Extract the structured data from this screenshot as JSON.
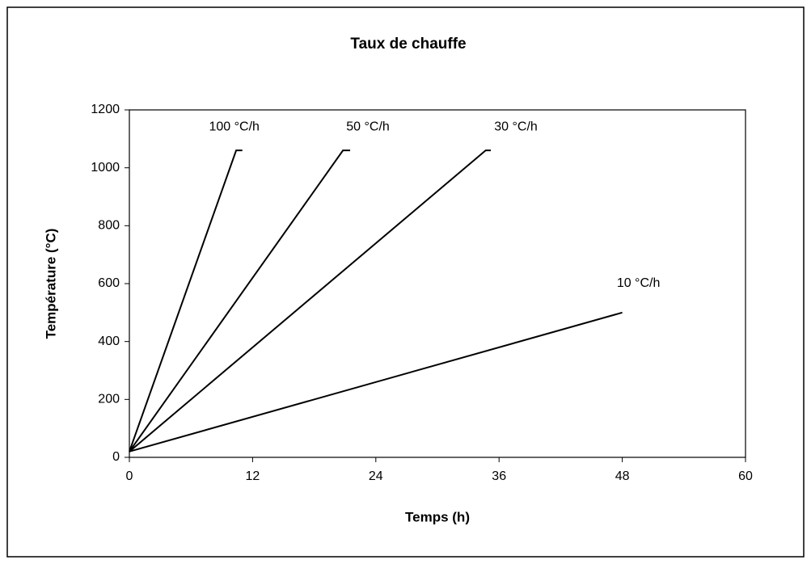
{
  "chart_data": {
    "type": "line",
    "title": "Taux de chauffe",
    "x_label": "Temps (h)",
    "y_label": "Température (°C)",
    "xlim": [
      0,
      60
    ],
    "xticks": [
      0,
      12,
      24,
      36,
      48,
      60
    ],
    "ylim": [
      0,
      1200
    ],
    "yticks": [
      0,
      200,
      400,
      600,
      800,
      1000,
      1200
    ],
    "grid": false,
    "series": [
      {
        "name": "100 °C/h",
        "color": "#000000",
        "x": [
          0,
          10.4,
          11
        ],
        "values": [
          20,
          1060,
          1060
        ]
      },
      {
        "name": "50 °C/h",
        "color": "#000000",
        "x": [
          0,
          20.8,
          21.5
        ],
        "values": [
          20,
          1060,
          1060
        ]
      },
      {
        "name": "30 °C/h",
        "color": "#000000",
        "x": [
          0,
          34.7,
          35.2
        ],
        "values": [
          20,
          1060,
          1060
        ]
      },
      {
        "name": "10 °C/h",
        "color": "#000000",
        "x": [
          0,
          48
        ],
        "values": [
          20,
          500
        ]
      }
    ]
  }
}
